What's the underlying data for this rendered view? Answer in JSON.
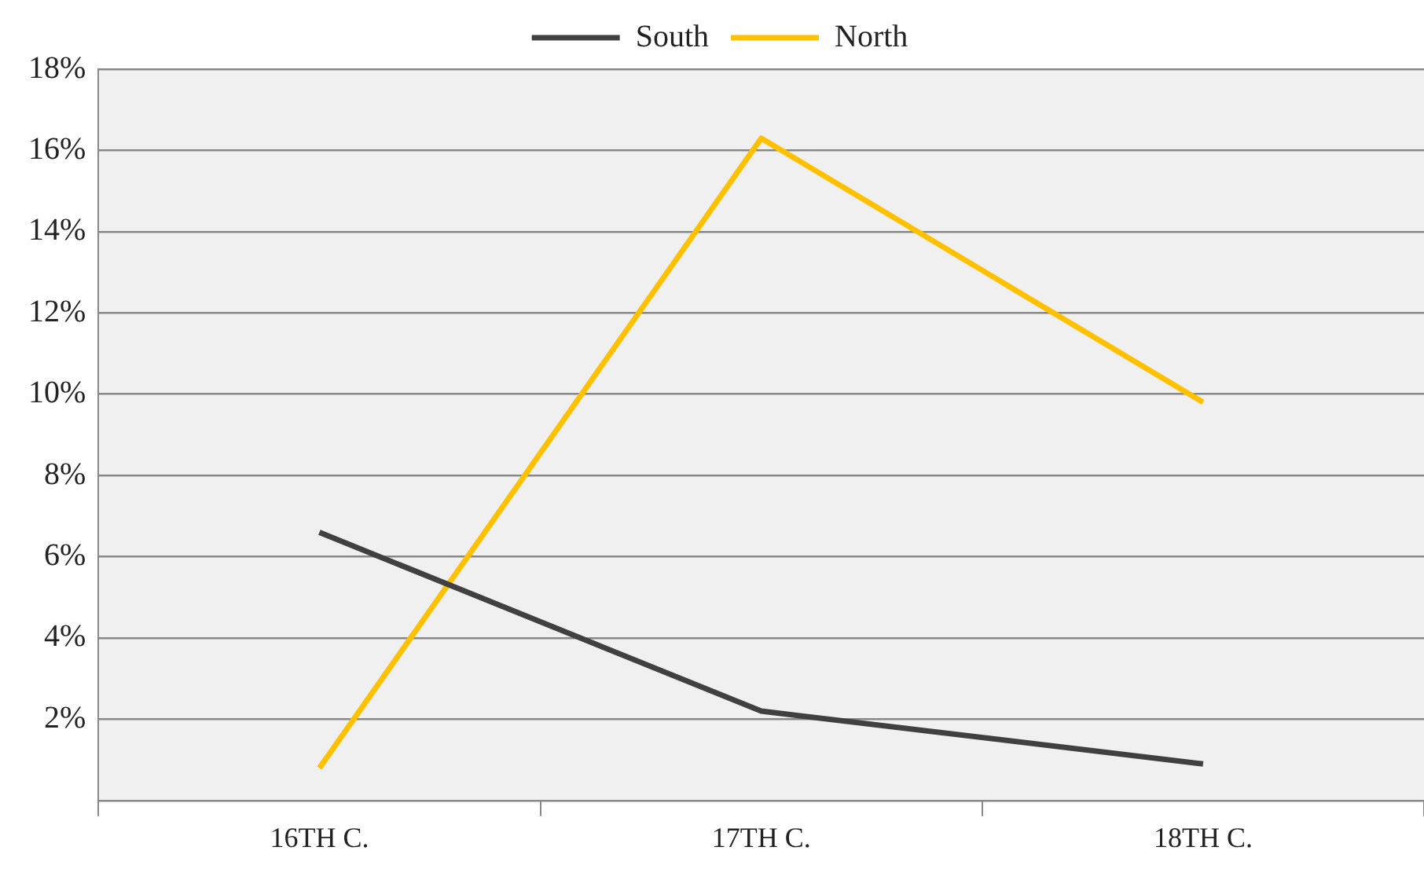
{
  "chart_data": {
    "type": "line",
    "categories": [
      "16TH C.",
      "17TH C.",
      "18TH C."
    ],
    "series": [
      {
        "name": "South",
        "color": "#404040",
        "values": [
          6.6,
          2.2,
          0.9
        ]
      },
      {
        "name": "North",
        "color": "#ffc000",
        "values": [
          0.8,
          16.3,
          9.8
        ]
      }
    ],
    "ylim": [
      0,
      18
    ],
    "yticks": [
      {
        "value": 0,
        "label": null
      },
      {
        "value": 2,
        "label": "2%"
      },
      {
        "value": 4,
        "label": "4%"
      },
      {
        "value": 6,
        "label": "6%"
      },
      {
        "value": 8,
        "label": "8%"
      },
      {
        "value": 10,
        "label": "10%"
      },
      {
        "value": 12,
        "label": "12%"
      },
      {
        "value": 14,
        "label": "14%"
      },
      {
        "value": 16,
        "label": "16%"
      },
      {
        "value": 18,
        "label": "18%"
      }
    ],
    "grid": "y",
    "legend": "top",
    "marker": "none",
    "line_style": "solid"
  }
}
